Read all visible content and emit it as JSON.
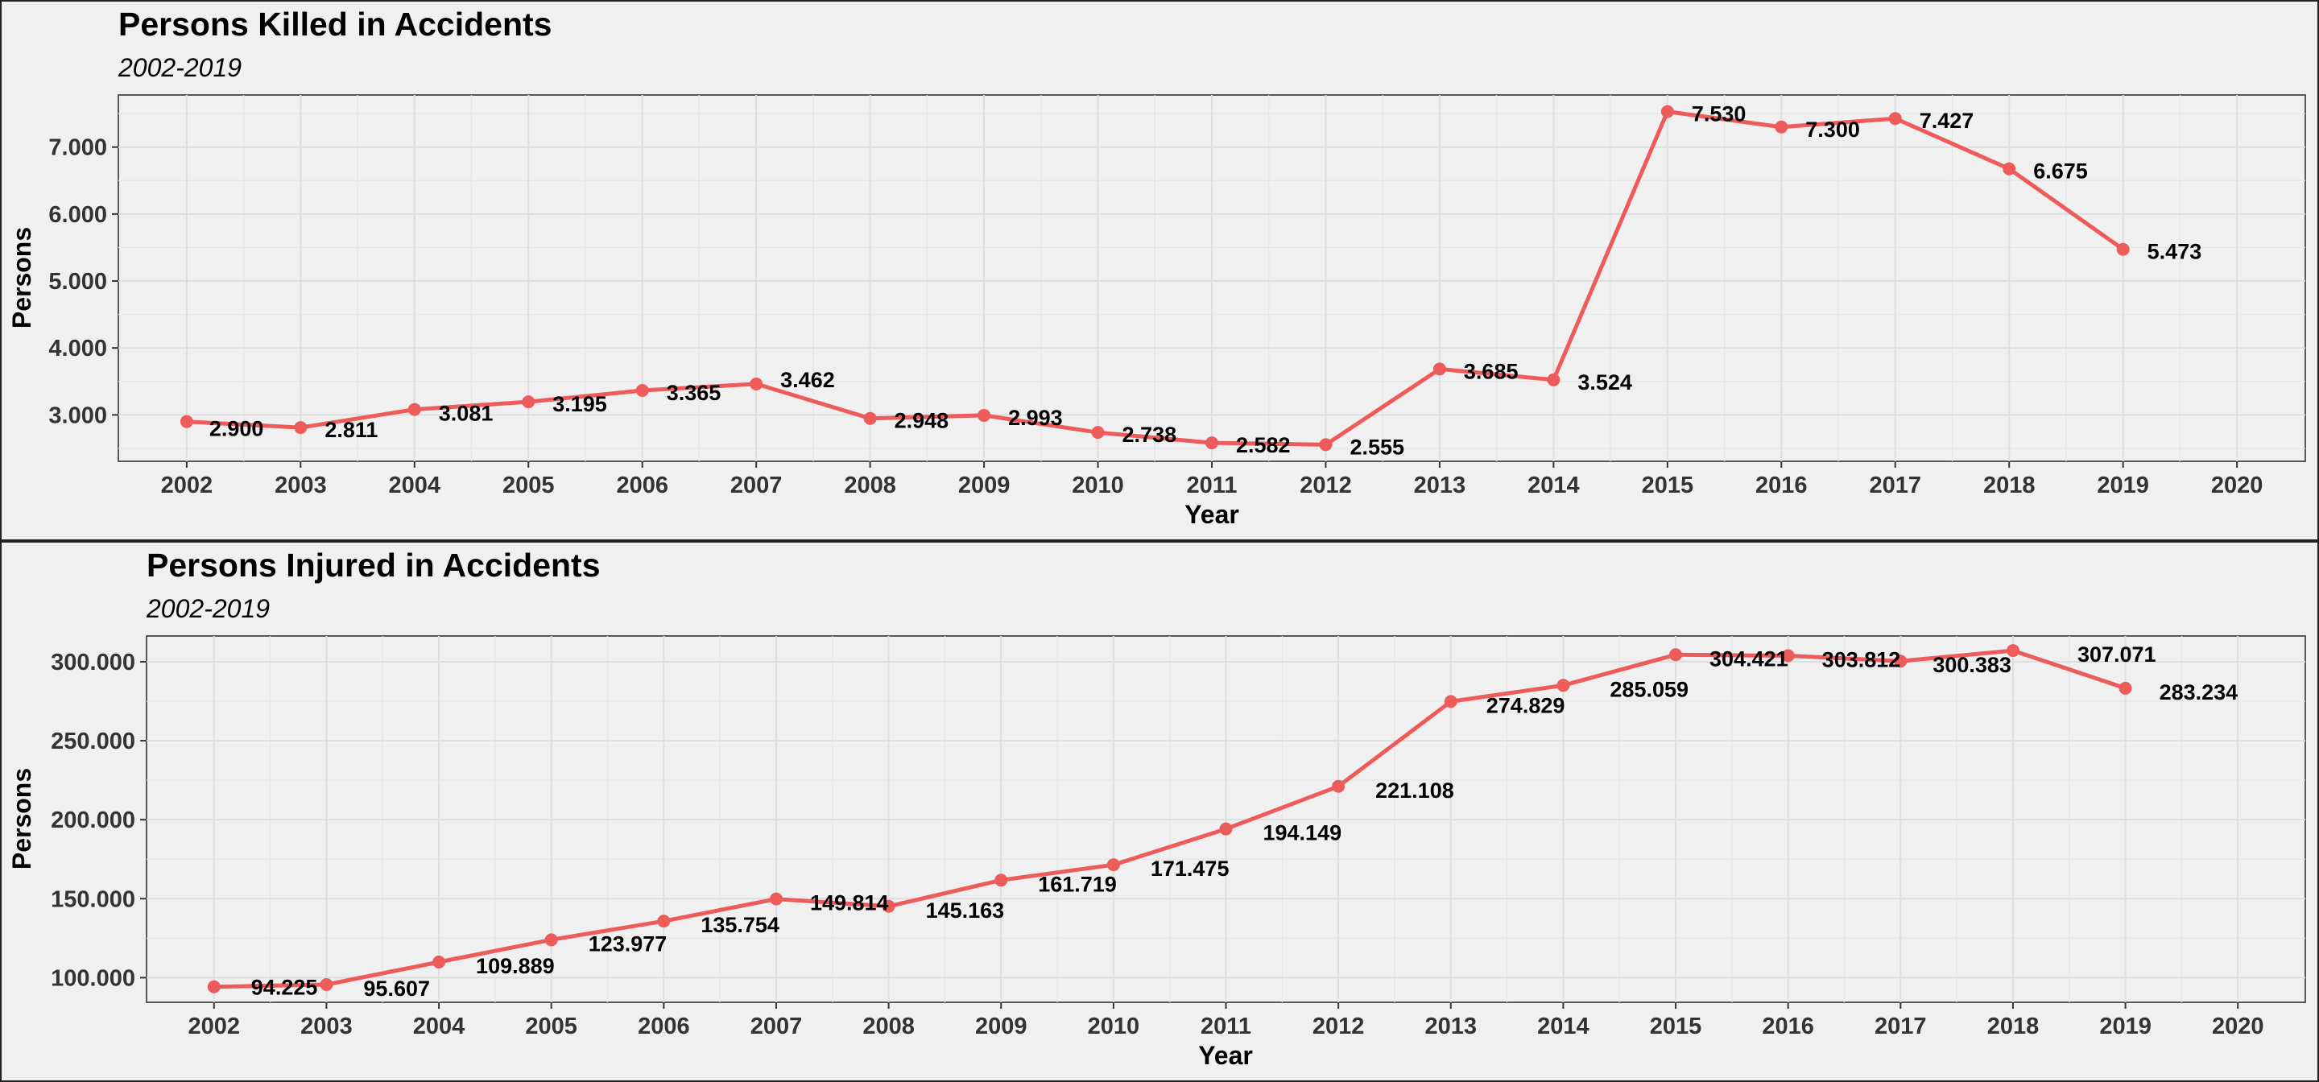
{
  "colors": {
    "line": "#ed5b5b",
    "background": "#f0f0f0"
  },
  "chart_data": [
    {
      "type": "line",
      "title": "Persons Killed in Accidents",
      "subtitle": "2002-2019",
      "xlabel": "Year",
      "ylabel": "Persons",
      "x": [
        2002,
        2003,
        2004,
        2005,
        2006,
        2007,
        2008,
        2009,
        2010,
        2011,
        2012,
        2013,
        2014,
        2015,
        2016,
        2017,
        2018,
        2019
      ],
      "values": [
        2900,
        2811,
        3081,
        3195,
        3365,
        3462,
        2948,
        2993,
        2738,
        2582,
        2555,
        3685,
        3524,
        7530,
        7300,
        7427,
        6675,
        5473
      ],
      "labels": [
        "2.900",
        "2.811",
        "3.081",
        "3.195",
        "3.365",
        "3.462",
        "2.948",
        "2.993",
        "2.738",
        "2.582",
        "2.555",
        "3.685",
        "3.524",
        "7.530",
        "7.300",
        "7.427",
        "6.675",
        "5.473"
      ],
      "xticks": [
        "2002",
        "2003",
        "2004",
        "2005",
        "2006",
        "2007",
        "2008",
        "2009",
        "2010",
        "2011",
        "2012",
        "2013",
        "2014",
        "2015",
        "2016",
        "2017",
        "2018",
        "2019",
        "2020"
      ],
      "yticks": [
        3000,
        4000,
        5000,
        6000,
        7000
      ],
      "ytick_labels": [
        "3.000",
        "4.000",
        "5.000",
        "6.000",
        "7.000"
      ],
      "xlim": [
        2001.4,
        2020.6
      ],
      "ylim": [
        2307,
        7778
      ],
      "grid": true
    },
    {
      "type": "line",
      "title": "Persons Injured in Accidents",
      "subtitle": "2002-2019",
      "xlabel": "Year",
      "ylabel": "Persons",
      "x": [
        2002,
        2003,
        2004,
        2005,
        2006,
        2007,
        2008,
        2009,
        2010,
        2011,
        2012,
        2013,
        2014,
        2015,
        2016,
        2017,
        2018,
        2019
      ],
      "values": [
        94225,
        95607,
        109889,
        123977,
        135754,
        149814,
        145163,
        161719,
        171475,
        194149,
        221108,
        274829,
        285059,
        304421,
        303812,
        300383,
        307071,
        283234
      ],
      "labels": [
        "94.225",
        "95.607",
        "109.889",
        "123.977",
        "135.754",
        "149.814",
        "145.163",
        "161.719",
        "171.475",
        "194.149",
        "221.108",
        "274.829",
        "285.059",
        "304.421",
        "303.812",
        "300.383",
        "307.071",
        "283.234"
      ],
      "xticks": [
        "2002",
        "2003",
        "2004",
        "2005",
        "2006",
        "2007",
        "2008",
        "2009",
        "2010",
        "2011",
        "2012",
        "2013",
        "2014",
        "2015",
        "2016",
        "2017",
        "2018",
        "2019",
        "2020"
      ],
      "yticks": [
        100000,
        150000,
        200000,
        250000,
        300000
      ],
      "ytick_labels": [
        "100.000",
        "150.000",
        "200.000",
        "250.000",
        "300.000"
      ],
      "xlim": [
        2001.4,
        2020.6
      ],
      "ylim": [
        84400,
        316300
      ],
      "grid": true
    }
  ]
}
